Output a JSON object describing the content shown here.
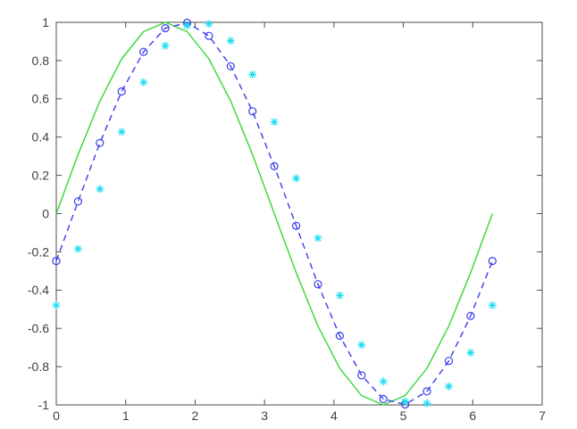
{
  "figure": {
    "background": "#ffffff",
    "axis_color": "#4d4d4d",
    "tick_label_color": "#3f3f3f"
  },
  "chart_data": {
    "type": "line",
    "title": "",
    "xlabel": "",
    "ylabel": "",
    "grid": false,
    "legend": "none",
    "box": true,
    "xlim": [
      0,
      7
    ],
    "ylim": [
      -1,
      1
    ],
    "x_ticks": [
      0,
      1,
      2,
      3,
      4,
      5,
      6,
      7
    ],
    "x_tick_labels": [
      "0",
      "1",
      "2",
      "3",
      "4",
      "5",
      "6",
      "7"
    ],
    "y_ticks": [
      -1,
      -0.8,
      -0.6,
      -0.4,
      -0.2,
      0,
      0.2,
      0.4,
      0.6,
      0.8,
      1
    ],
    "y_tick_labels": [
      "-1",
      "-0.8",
      "-0.6",
      "-0.4",
      "-0.2",
      "0",
      "0.2",
      "0.4",
      "0.6",
      "0.8",
      "1"
    ],
    "x": [
      0,
      0.3142,
      0.6283,
      0.9425,
      1.2566,
      1.5708,
      1.885,
      2.1991,
      2.5133,
      2.8274,
      3.1416,
      3.4558,
      3.7699,
      4.0841,
      4.3982,
      4.7124,
      5.0265,
      5.3407,
      5.6549,
      5.969,
      6.2832
    ],
    "series": [
      {
        "name": "green-solid-sine",
        "line_style": "solid",
        "marker": "none",
        "color": "#33d833",
        "values": [
          0,
          0.309,
          0.5878,
          0.809,
          0.9511,
          1,
          0.9511,
          0.809,
          0.5878,
          0.309,
          0,
          -0.309,
          -0.5878,
          -0.809,
          -0.9511,
          -1,
          -0.9511,
          -0.809,
          -0.5878,
          -0.309,
          0
        ]
      },
      {
        "name": "blue-dashed-circles-sine",
        "line_style": "dashed",
        "marker": "circle",
        "color": "#3a3aee",
        "values": [
          -0.2474,
          0.0641,
          0.3694,
          0.6385,
          0.845,
          0.9692,
          0.9979,
          0.929,
          0.7702,
          0.5346,
          0.2474,
          -0.0641,
          -0.3694,
          -0.6385,
          -0.845,
          -0.9692,
          -0.9979,
          -0.929,
          -0.7702,
          -0.5346,
          -0.2474
        ]
      },
      {
        "name": "cyan-asterisks-sine",
        "line_style": "none",
        "marker": "asterisk",
        "color": "#16dcf2",
        "values": [
          -0.4794,
          -0.1848,
          0.128,
          0.4281,
          0.6866,
          0.8776,
          0.9828,
          0.9918,
          0.9037,
          0.7272,
          0.4794,
          0.1848,
          -0.128,
          -0.4281,
          -0.6866,
          -0.8776,
          -0.9828,
          -0.9918,
          -0.9037,
          -0.7272,
          -0.4794
        ]
      }
    ]
  }
}
